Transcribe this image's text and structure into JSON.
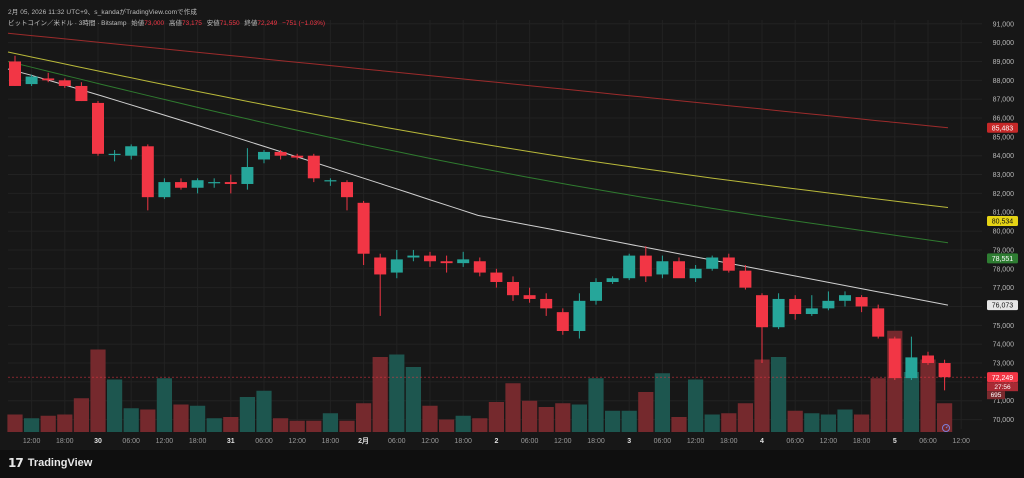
{
  "header": {
    "timestamp_line": "2月 05, 2026 11:32 UTC+9、s_kandaがTradingView.comで作成",
    "symbol": "ビットコイン／米ドル · 3時間 · Bitstamp",
    "open_label": "始値",
    "open_value": "73,000",
    "high_label": "高値",
    "high_value": "73,175",
    "low_label": "安値",
    "low_value": "71,550",
    "close_label": "終値",
    "close_value": "72,249",
    "change_value": "−751 (−1.03%)"
  },
  "brand": {
    "logo_glyph": "17",
    "name": "TradingView"
  },
  "colors": {
    "up": "#26a69a",
    "down": "#f23645",
    "grid": "#222222",
    "ma_red": "#9c2b2b",
    "ma_yellow": "#b9b93a",
    "ma_green": "#2f7a2f",
    "ma_white": "#cfcfcf"
  },
  "chart_data": {
    "type": "candlestick",
    "title": "ビットコイン／米ドル · 3時間 · Bitstamp",
    "y_axis": {
      "range": [
        69500,
        91200
      ],
      "ticks": [
        91000,
        90000,
        89000,
        88000,
        87000,
        86000,
        85000,
        84000,
        83000,
        82000,
        81000,
        80000,
        79000,
        78000,
        77000,
        76000,
        75000,
        74000,
        73000,
        72000,
        71000,
        70000
      ],
      "tick_labels": [
        "91,000",
        "90,000",
        "89,000",
        "88,000",
        "87,000",
        "86,000",
        "85,000",
        "84,000",
        "83,000",
        "82,000",
        "81,000",
        "80,000",
        "79,000",
        "78,000",
        "77,000",
        "76,000",
        "75,000",
        "74,000",
        "73,000",
        "72,000",
        "71,000",
        "70,000"
      ]
    },
    "x_axis": {
      "tick_labels": [
        "12:00",
        "18:00",
        "30",
        "06:00",
        "12:00",
        "18:00",
        "31",
        "06:00",
        "12:00",
        "18:00",
        "2月",
        "06:00",
        "12:00",
        "18:00",
        "2",
        "06:00",
        "12:00",
        "18:00",
        "3",
        "06:00",
        "12:00",
        "18:00",
        "4",
        "06:00",
        "12:00",
        "18:00",
        "5",
        "06:00",
        "12:00"
      ],
      "tick_bar_index": [
        1,
        3,
        5,
        7,
        9,
        11,
        13,
        15,
        17,
        19,
        21,
        23,
        25,
        27,
        29,
        31,
        33,
        35,
        37,
        39,
        41,
        43,
        45,
        47,
        49,
        51,
        53,
        55,
        57
      ],
      "bold_labels": [
        "30",
        "31",
        "2月",
        "2",
        "3",
        "4",
        "5"
      ]
    },
    "candles": [
      {
        "o": 89000,
        "h": 89300,
        "l": 87700,
        "c": 87700
      },
      {
        "o": 87800,
        "h": 88300,
        "l": 87700,
        "c": 88200
      },
      {
        "o": 88100,
        "h": 88400,
        "l": 87900,
        "c": 88000
      },
      {
        "o": 88000,
        "h": 88100,
        "l": 87600,
        "c": 87700
      },
      {
        "o": 87700,
        "h": 87900,
        "l": 86900,
        "c": 86900
      },
      {
        "o": 86800,
        "h": 86900,
        "l": 84000,
        "c": 84100
      },
      {
        "o": 84100,
        "h": 84300,
        "l": 83700,
        "c": 84100
      },
      {
        "o": 84000,
        "h": 84600,
        "l": 83800,
        "c": 84500
      },
      {
        "o": 84500,
        "h": 84600,
        "l": 81100,
        "c": 81800
      },
      {
        "o": 81800,
        "h": 82800,
        "l": 81700,
        "c": 82600
      },
      {
        "o": 82600,
        "h": 82800,
        "l": 82200,
        "c": 82300
      },
      {
        "o": 82300,
        "h": 82800,
        "l": 82000,
        "c": 82700
      },
      {
        "o": 82600,
        "h": 82800,
        "l": 82300,
        "c": 82600
      },
      {
        "o": 82600,
        "h": 83000,
        "l": 82000,
        "c": 82500
      },
      {
        "o": 82500,
        "h": 84400,
        "l": 82200,
        "c": 83400
      },
      {
        "o": 83800,
        "h": 84300,
        "l": 83600,
        "c": 84200
      },
      {
        "o": 84200,
        "h": 84300,
        "l": 83800,
        "c": 84000
      },
      {
        "o": 84000,
        "h": 84100,
        "l": 83800,
        "c": 83900
      },
      {
        "o": 84000,
        "h": 84100,
        "l": 82600,
        "c": 82800
      },
      {
        "o": 82700,
        "h": 82800,
        "l": 82400,
        "c": 82700
      },
      {
        "o": 82600,
        "h": 82700,
        "l": 81100,
        "c": 81800
      },
      {
        "o": 81500,
        "h": 81600,
        "l": 78200,
        "c": 78800
      },
      {
        "o": 78600,
        "h": 78800,
        "l": 75500,
        "c": 77700
      },
      {
        "o": 77800,
        "h": 79000,
        "l": 77500,
        "c": 78500
      },
      {
        "o": 78600,
        "h": 79000,
        "l": 78400,
        "c": 78700
      },
      {
        "o": 78700,
        "h": 78900,
        "l": 78100,
        "c": 78400
      },
      {
        "o": 78400,
        "h": 78700,
        "l": 77800,
        "c": 78300
      },
      {
        "o": 78300,
        "h": 78900,
        "l": 78100,
        "c": 78500
      },
      {
        "o": 78400,
        "h": 78600,
        "l": 77600,
        "c": 77800
      },
      {
        "o": 77800,
        "h": 78000,
        "l": 77000,
        "c": 77300
      },
      {
        "o": 77300,
        "h": 77600,
        "l": 76300,
        "c": 76600
      },
      {
        "o": 76600,
        "h": 77000,
        "l": 76200,
        "c": 76400
      },
      {
        "o": 76400,
        "h": 76700,
        "l": 75500,
        "c": 75900
      },
      {
        "o": 75700,
        "h": 75900,
        "l": 74500,
        "c": 74700
      },
      {
        "o": 74700,
        "h": 76700,
        "l": 74300,
        "c": 76300
      },
      {
        "o": 76300,
        "h": 77500,
        "l": 76100,
        "c": 77300
      },
      {
        "o": 77300,
        "h": 77600,
        "l": 77200,
        "c": 77500
      },
      {
        "o": 77500,
        "h": 78800,
        "l": 77400,
        "c": 78700
      },
      {
        "o": 78700,
        "h": 79200,
        "l": 77300,
        "c": 77600
      },
      {
        "o": 77700,
        "h": 78700,
        "l": 77500,
        "c": 78400
      },
      {
        "o": 78400,
        "h": 78600,
        "l": 77700,
        "c": 77500
      },
      {
        "o": 77500,
        "h": 78200,
        "l": 77300,
        "c": 78000
      },
      {
        "o": 78000,
        "h": 78700,
        "l": 77900,
        "c": 78600
      },
      {
        "o": 78600,
        "h": 78800,
        "l": 77800,
        "c": 77900
      },
      {
        "o": 77900,
        "h": 78200,
        "l": 76900,
        "c": 77000
      },
      {
        "o": 76600,
        "h": 76700,
        "l": 73000,
        "c": 74900
      },
      {
        "o": 74900,
        "h": 76700,
        "l": 74800,
        "c": 76400
      },
      {
        "o": 76400,
        "h": 76600,
        "l": 75300,
        "c": 75600
      },
      {
        "o": 75600,
        "h": 76600,
        "l": 75500,
        "c": 75900
      },
      {
        "o": 75900,
        "h": 76800,
        "l": 75800,
        "c": 76300
      },
      {
        "o": 76300,
        "h": 76800,
        "l": 76000,
        "c": 76600
      },
      {
        "o": 76500,
        "h": 76600,
        "l": 75700,
        "c": 76000
      },
      {
        "o": 75900,
        "h": 76100,
        "l": 74300,
        "c": 74400
      },
      {
        "o": 74300,
        "h": 74400,
        "l": 72100,
        "c": 72200
      },
      {
        "o": 72200,
        "h": 74400,
        "l": 72100,
        "c": 73300
      },
      {
        "o": 73400,
        "h": 73600,
        "l": 72900,
        "c": 73000
      },
      {
        "o": 73000,
        "h": 73175,
        "l": 71550,
        "c": 72249
      }
    ],
    "volume": [
      14,
      11,
      13,
      14,
      27,
      66,
      42,
      19,
      18,
      43,
      22,
      21,
      11,
      12,
      28,
      33,
      11,
      9,
      9,
      15,
      9,
      23,
      60,
      62,
      52,
      21,
      10,
      13,
      11,
      24,
      39,
      25,
      20,
      23,
      22,
      43,
      17,
      17,
      32,
      47,
      12,
      42,
      14,
      15,
      23,
      58,
      60,
      17,
      15,
      14,
      18,
      14,
      43,
      81,
      48,
      58,
      23
    ],
    "moving_averages": [
      {
        "name": "MA-red",
        "start": 90500,
        "end": 85483,
        "label": "85,483"
      },
      {
        "name": "MA-yellow",
        "start": 89500,
        "end": 80534,
        "label": "80,534"
      },
      {
        "name": "MA-green",
        "start": 89000,
        "end": 78551,
        "label": "78,551"
      },
      {
        "name": "MA-white",
        "start": 88600,
        "end": 76073,
        "label": "76,073"
      }
    ],
    "price_badges": [
      {
        "text": "85,483",
        "value": 85483,
        "color": "#c62828",
        "fg": "#ffffff"
      },
      {
        "text": "80,534",
        "value": 80534,
        "color": "#e6d415",
        "fg": "#111111"
      },
      {
        "text": "78,551",
        "value": 78551,
        "color": "#2e7d32",
        "fg": "#ffffff"
      },
      {
        "text": "76,073",
        "value": 76073,
        "color": "#e6e6e6",
        "fg": "#111111"
      },
      {
        "text": "72,249",
        "value": 72249,
        "color": "#f23645",
        "fg": "#ffffff"
      }
    ],
    "countdown": "27:56",
    "volume_badge": "695",
    "last_price": 72249
  }
}
